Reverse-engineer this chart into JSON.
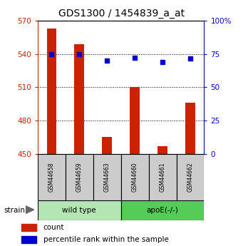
{
  "title": "GDS1300 / 1454839_a_at",
  "samples": [
    "GSM44658",
    "GSM44659",
    "GSM44663",
    "GSM44660",
    "GSM44661",
    "GSM44662"
  ],
  "bar_values": [
    563,
    549,
    465,
    510,
    457,
    496
  ],
  "bar_baseline": 450,
  "blue_values": [
    540,
    540,
    534,
    537,
    533,
    536
  ],
  "groups": [
    {
      "label": "wild type",
      "indices": [
        0,
        1,
        2
      ],
      "color": "#b3e6b3"
    },
    {
      "label": "apoE(-/-)",
      "indices": [
        3,
        4,
        5
      ],
      "color": "#55cc55"
    }
  ],
  "ylim_left": [
    450,
    570
  ],
  "ylim_right": [
    0,
    100
  ],
  "yticks_left": [
    450,
    480,
    510,
    540,
    570
  ],
  "yticks_right": [
    0,
    25,
    50,
    75,
    100
  ],
  "ytick_right_labels": [
    "0",
    "25",
    "50",
    "75",
    "100%"
  ],
  "grid_values": [
    480,
    510,
    540
  ],
  "bar_color": "#cc2200",
  "blue_color": "#0000cc",
  "left_tick_color": "#cc2200",
  "right_tick_color": "#0000cc",
  "title_fontsize": 10,
  "legend_label_count": "count",
  "legend_label_percentile": "percentile rank within the sample",
  "strain_label": "strain",
  "sample_box_color": "#cccccc",
  "fig_width": 3.41,
  "fig_height": 3.45,
  "dpi": 100
}
